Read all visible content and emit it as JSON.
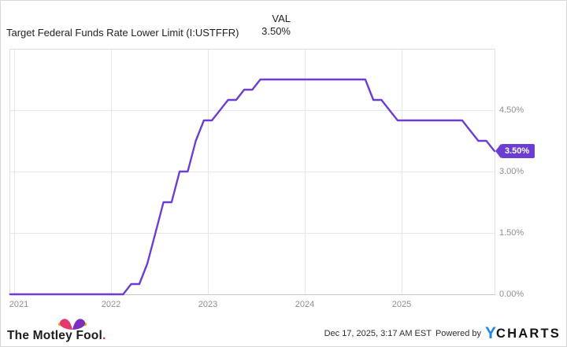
{
  "header": {
    "title": "Target Federal Funds Rate Lower Limit (I:USTFFR)",
    "val_label": "VAL",
    "val_value": "3.50%"
  },
  "chart_data": {
    "type": "line",
    "title": "Target Federal Funds Rate Lower Limit",
    "ticker": "I:USTFFR",
    "unit": "percent",
    "ylim": [
      0,
      6
    ],
    "xlim_years": [
      2020.95,
      2025.99
    ],
    "grid": true,
    "legend_position": "none",
    "line_color": "#6C3DD1",
    "x_ticks": [
      {
        "value": 2021,
        "label": "2021"
      },
      {
        "value": 2022,
        "label": "2022"
      },
      {
        "value": 2023,
        "label": "2023"
      },
      {
        "value": 2024,
        "label": "2024"
      },
      {
        "value": 2025,
        "label": "2025"
      }
    ],
    "y_ticks": [
      {
        "value": 0,
        "label": "0.00%"
      },
      {
        "value": 1.5,
        "label": "1.50%"
      },
      {
        "value": 3,
        "label": "3.00%"
      },
      {
        "value": 4.5,
        "label": "4.50%"
      }
    ],
    "last_value_tag": {
      "label": "3.50%",
      "value": 3.5,
      "color": "#6C3DD1"
    },
    "points": [
      [
        "2020-12",
        0
      ],
      [
        "2021-01",
        0
      ],
      [
        "2021-02",
        0
      ],
      [
        "2021-03",
        0
      ],
      [
        "2021-04",
        0
      ],
      [
        "2021-05",
        0
      ],
      [
        "2021-06",
        0
      ],
      [
        "2021-07",
        0
      ],
      [
        "2021-08",
        0
      ],
      [
        "2021-09",
        0
      ],
      [
        "2021-10",
        0
      ],
      [
        "2021-11",
        0
      ],
      [
        "2021-12",
        0
      ],
      [
        "2022-01",
        0
      ],
      [
        "2022-02",
        0
      ],
      [
        "2022-03",
        0.25
      ],
      [
        "2022-04",
        0.25
      ],
      [
        "2022-05",
        0.75
      ],
      [
        "2022-06",
        1.5
      ],
      [
        "2022-07",
        2.25
      ],
      [
        "2022-08",
        2.25
      ],
      [
        "2022-09",
        3
      ],
      [
        "2022-10",
        3
      ],
      [
        "2022-11",
        3.75
      ],
      [
        "2022-12",
        4.25
      ],
      [
        "2023-01",
        4.25
      ],
      [
        "2023-02",
        4.5
      ],
      [
        "2023-03",
        4.75
      ],
      [
        "2023-04",
        4.75
      ],
      [
        "2023-05",
        5
      ],
      [
        "2023-06",
        5
      ],
      [
        "2023-07",
        5.25
      ],
      [
        "2023-08",
        5.25
      ],
      [
        "2023-09",
        5.25
      ],
      [
        "2023-10",
        5.25
      ],
      [
        "2023-11",
        5.25
      ],
      [
        "2023-12",
        5.25
      ],
      [
        "2024-01",
        5.25
      ],
      [
        "2024-02",
        5.25
      ],
      [
        "2024-03",
        5.25
      ],
      [
        "2024-04",
        5.25
      ],
      [
        "2024-05",
        5.25
      ],
      [
        "2024-06",
        5.25
      ],
      [
        "2024-07",
        5.25
      ],
      [
        "2024-08",
        5.25
      ],
      [
        "2024-09",
        4.75
      ],
      [
        "2024-10",
        4.75
      ],
      [
        "2024-11",
        4.5
      ],
      [
        "2024-12",
        4.25
      ],
      [
        "2025-01",
        4.25
      ],
      [
        "2025-02",
        4.25
      ],
      [
        "2025-03",
        4.25
      ],
      [
        "2025-04",
        4.25
      ],
      [
        "2025-05",
        4.25
      ],
      [
        "2025-06",
        4.25
      ],
      [
        "2025-07",
        4.25
      ],
      [
        "2025-08",
        4.25
      ],
      [
        "2025-09",
        4
      ],
      [
        "2025-10",
        3.75
      ],
      [
        "2025-11",
        3.75
      ],
      [
        "2025-12",
        3.5
      ]
    ]
  },
  "footer": {
    "brand": "The Motley Fool",
    "brand_period": ".",
    "timestamp": "Dec 17, 2025, 3:17 AM EST",
    "powered_by": "Powered by",
    "ycharts_y": "Y",
    "ycharts_rest": "CHARTS"
  },
  "colors": {
    "line": "#6C3DD1",
    "tag_background": "#6C3DD1",
    "tag_text": "#FFFFFF",
    "grid": "#E7E7E7",
    "axis_border": "#DFDFDF",
    "bottom_axis": "#C6C6C6",
    "tick_text": "#8E8E8E",
    "title_text": "#1F1F1F",
    "ycharts_blue": "#2084E8",
    "hat_pink": "#E5386D",
    "hat_purple": "#7B2FBF",
    "hat_ball": "#F7A81B",
    "brand_period_red": "#D43140"
  }
}
